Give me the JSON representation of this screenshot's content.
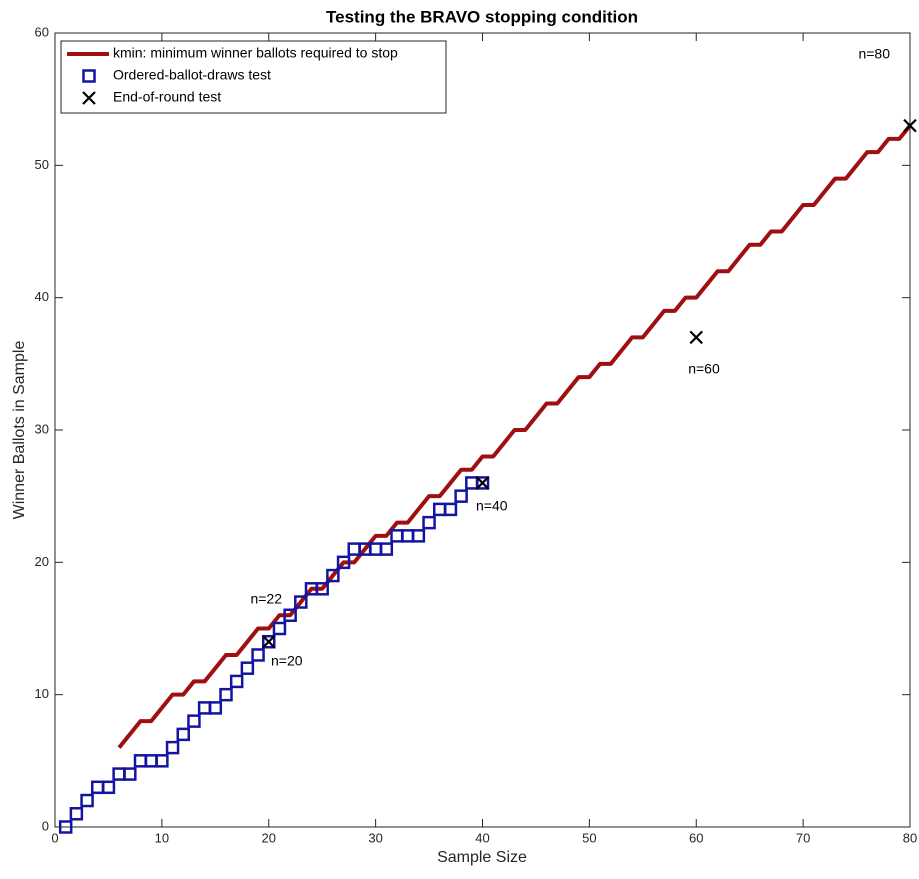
{
  "chart_data": {
    "type": "line",
    "title": "Testing the BRAVO stopping condition",
    "xlabel": "Sample Size",
    "ylabel": "Winner Ballots in Sample",
    "xlim": [
      0,
      80
    ],
    "ylim": [
      0,
      60
    ],
    "xticks": [
      0,
      10,
      20,
      30,
      40,
      50,
      60,
      70,
      80
    ],
    "yticks": [
      0,
      10,
      20,
      30,
      40,
      50,
      60
    ],
    "grid": false,
    "legend": "upper left",
    "series": [
      {
        "name": "kmin: minimum winner ballots required to stop",
        "color": "#a00f0f",
        "marker": "line",
        "x": [
          6,
          7,
          8,
          9,
          10,
          11,
          12,
          13,
          14,
          15,
          16,
          17,
          18,
          19,
          20,
          21,
          22,
          23,
          24,
          25,
          26,
          27,
          28,
          29,
          30,
          31,
          32,
          33,
          34,
          35,
          36,
          37,
          38,
          39,
          40,
          41,
          42,
          43,
          44,
          45,
          46,
          47,
          48,
          49,
          50,
          51,
          52,
          53,
          54,
          55,
          56,
          57,
          58,
          59,
          60,
          61,
          62,
          63,
          64,
          65,
          66,
          67,
          68,
          69,
          70,
          71,
          72,
          73,
          74,
          75,
          76,
          77,
          78,
          79,
          80
        ],
        "values": [
          6,
          7,
          8,
          8,
          9,
          10,
          10,
          11,
          11,
          12,
          13,
          13,
          14,
          15,
          15,
          16,
          16,
          17,
          18,
          18,
          19,
          20,
          20,
          21,
          22,
          22,
          23,
          23,
          24,
          25,
          25,
          26,
          27,
          27,
          28,
          28,
          29,
          30,
          30,
          31,
          32,
          32,
          33,
          34,
          34,
          35,
          35,
          36,
          37,
          37,
          38,
          39,
          39,
          40,
          40,
          41,
          42,
          42,
          43,
          44,
          44,
          45,
          45,
          46,
          47,
          47,
          48,
          49,
          49,
          50,
          51,
          51,
          52,
          52,
          53
        ]
      },
      {
        "name": "Ordered-ballot-draws test",
        "color": "#1414a0",
        "marker": "square",
        "x": [
          1,
          2,
          3,
          4,
          5,
          6,
          7,
          8,
          9,
          10,
          11,
          12,
          13,
          14,
          15,
          16,
          17,
          18,
          19,
          20,
          21,
          22,
          23,
          24,
          25,
          26,
          27,
          28,
          29,
          30,
          31,
          32,
          33,
          34,
          35,
          36,
          37,
          38,
          39,
          40
        ],
        "values": [
          0,
          1,
          2,
          3,
          3,
          4,
          4,
          5,
          5,
          5,
          6,
          7,
          8,
          9,
          9,
          10,
          11,
          12,
          13,
          14,
          15,
          16,
          17,
          18,
          18,
          19,
          20,
          21,
          21,
          21,
          21,
          22,
          22,
          22,
          23,
          24,
          24,
          25,
          26,
          26
        ]
      },
      {
        "name": "End-of-round test",
        "color": "#000000",
        "marker": "x",
        "x": [
          20,
          40,
          60,
          80
        ],
        "values": [
          14,
          26,
          37,
          53
        ]
      }
    ],
    "annotations": [
      "n=20",
      "n=22",
      "n=40",
      "n=60",
      "n=80"
    ]
  }
}
